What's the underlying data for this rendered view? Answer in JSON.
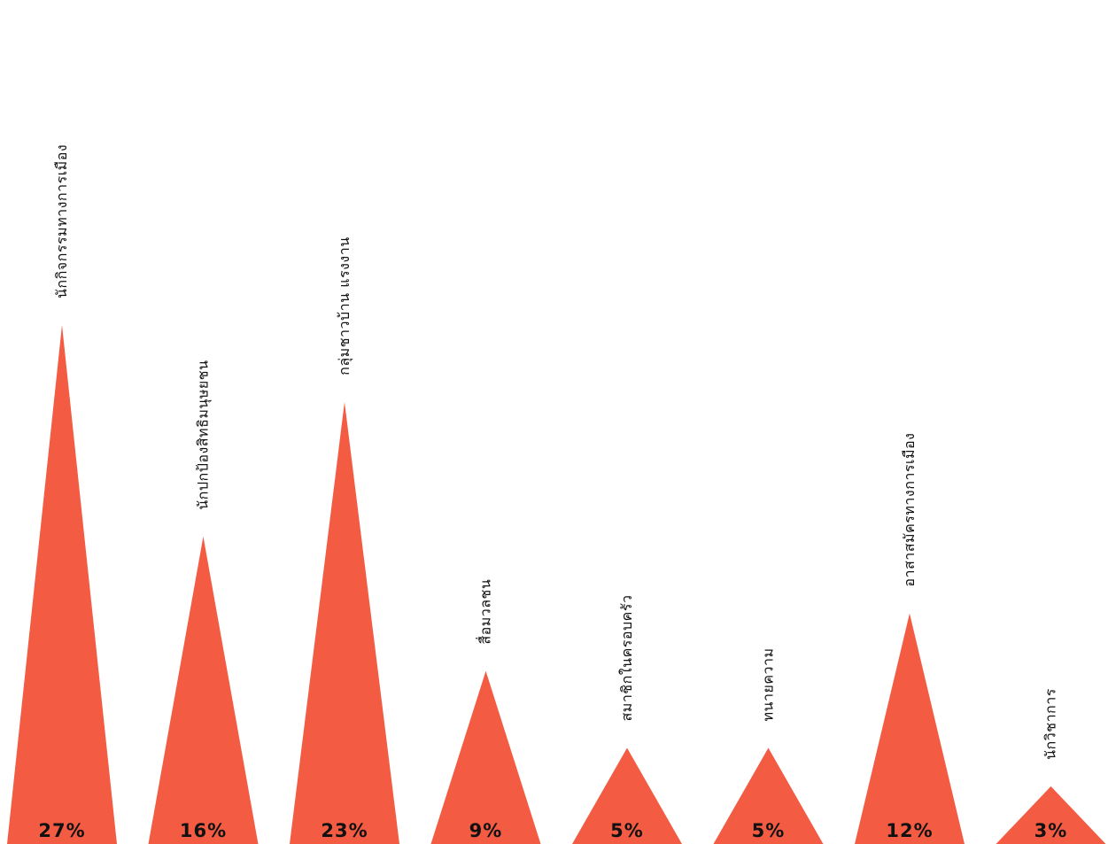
{
  "chart_data": {
    "type": "bar",
    "mark_shape": "triangle",
    "categories": [
      "นักกิจกรรมทางการเมือง",
      "นักปกป้องสิทธิมนุษยชน",
      "กลุ่มชาวบ้าน แรงงาน",
      "สื่อมวลชน",
      "สมาชิกในครอบครัว",
      "ทนายความ",
      "อาสาสมัครทางการเมือง",
      "นักวิชาการ"
    ],
    "values": [
      27,
      16,
      23,
      9,
      5,
      5,
      12,
      3
    ],
    "value_labels": [
      "27%",
      "16%",
      "23%",
      "9%",
      "5%",
      "5%",
      "12%",
      "3%"
    ],
    "unit": "%",
    "ylim": [
      0,
      37
    ],
    "grid": false,
    "legend": "none",
    "colors": {
      "bar": "#f45b43",
      "text": "#111111",
      "background": "#ffffff"
    }
  }
}
